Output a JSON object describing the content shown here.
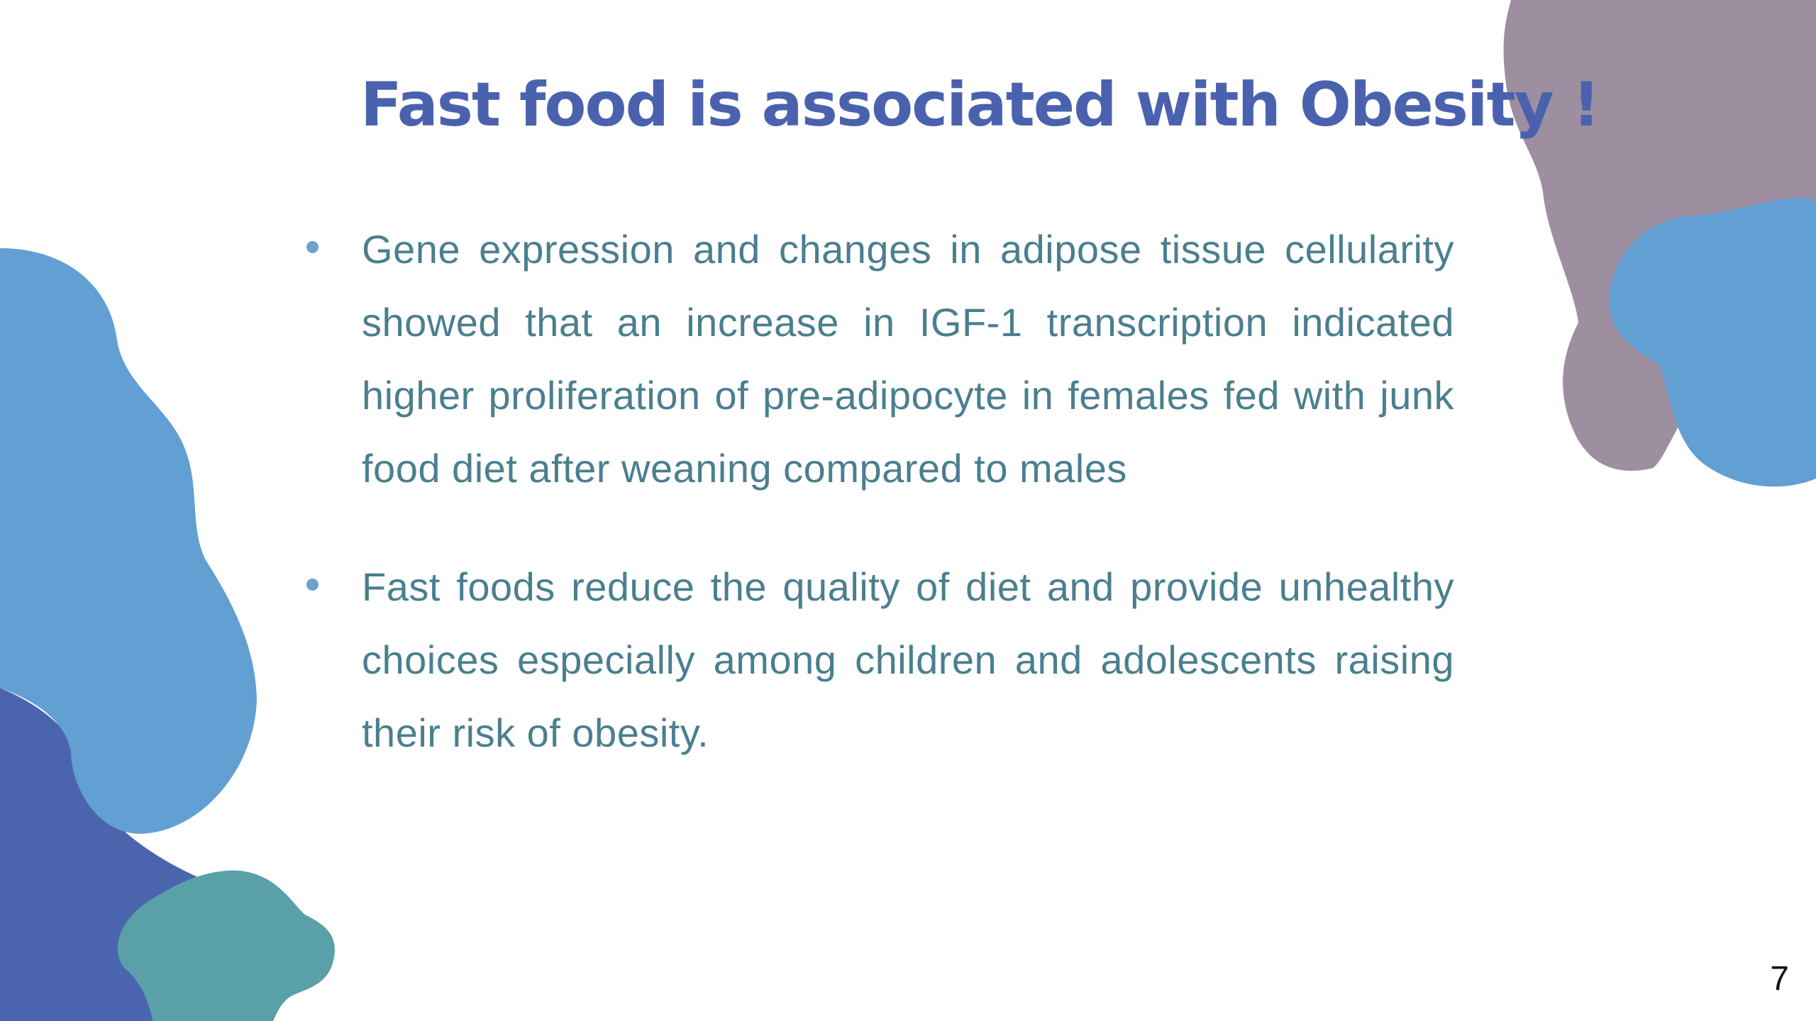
{
  "slide": {
    "title": "Fast food  is associated with Obesity !",
    "bullets": [
      "Gene expression and changes in adipose tissue cellularity showed that an increase in IGF-1 transcription indicated higher proliferation of pre-adipocyte in females fed with junk food diet after weaning compared to males",
      "Fast foods reduce the quality of diet and provide unhealthy choices especially among children and adolescents raising their risk of obesity."
    ],
    "page_number": "7"
  },
  "colors": {
    "title": "#4a62ae",
    "body_text": "#4a7f8f",
    "bullet": "#6aa3cf",
    "blob_light_blue": "#629fd3",
    "blob_dark_blue": "#4a65ae",
    "blob_teal": "#5aa0a8",
    "blob_mauve": "#9d8ea0"
  }
}
